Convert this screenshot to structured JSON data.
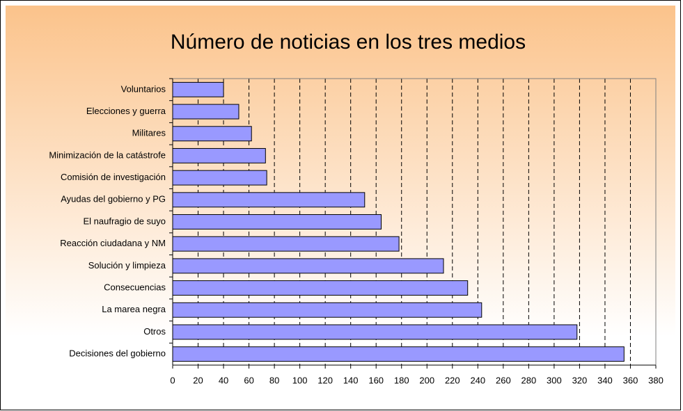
{
  "chart_data": {
    "type": "barh",
    "title": "Número de noticias en los tres medios",
    "categories": [
      "Voluntarios",
      "Elecciones y guerra",
      "Militares",
      "Minimización de la catástrofe",
      "Comisión de investigación",
      "Ayudas del gobierno y PG",
      "El naufragio de suyo",
      "Reacción ciudadana y NM",
      "Solución y limpieza",
      "Consecuencias",
      "La marea negra",
      "Otros",
      "Decisiones del gobierno"
    ],
    "values": [
      40,
      52,
      62,
      73,
      74,
      151,
      164,
      178,
      213,
      232,
      243,
      318,
      355
    ],
    "color": "#9999ff",
    "xlim": [
      0,
      380
    ],
    "xticks": [
      0,
      20,
      40,
      60,
      80,
      100,
      120,
      140,
      160,
      180,
      200,
      220,
      240,
      260,
      280,
      300,
      320,
      340,
      360,
      380
    ],
    "grid": true
  }
}
